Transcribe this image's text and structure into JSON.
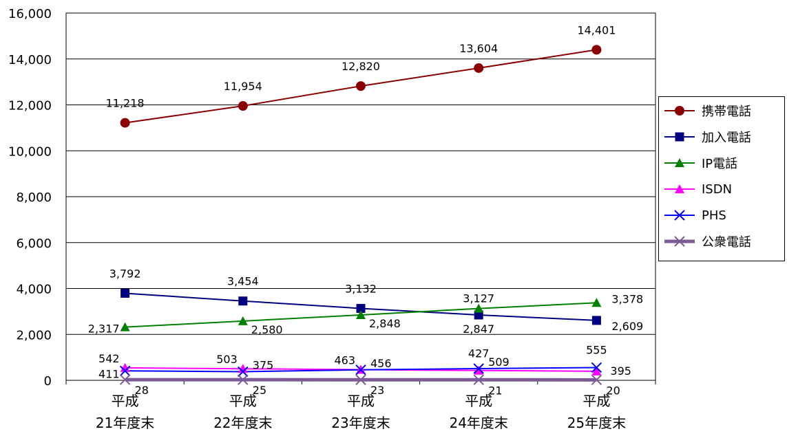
{
  "chart_data": {
    "type": "line",
    "categories": [
      [
        "平成",
        "21年度末"
      ],
      [
        "平成",
        "22年度末"
      ],
      [
        "平成",
        "23年度末"
      ],
      [
        "平成",
        "24年度末"
      ],
      [
        "平成",
        "25年度末"
      ]
    ],
    "ylim": [
      0,
      16000
    ],
    "yticks": [
      "0",
      "2,000",
      "4,000",
      "6,000",
      "8,000",
      "10,000",
      "12,000",
      "14,000",
      "16,000"
    ],
    "grid": true,
    "legend_position": "right",
    "series": [
      {
        "name": "携帯電話",
        "values": [
          11218,
          11954,
          12820,
          13604,
          14401
        ],
        "labels": [
          "11,218",
          "11,954",
          "12,820",
          "13,604",
          "14,401"
        ],
        "color": "#8B0000",
        "marker": "circle"
      },
      {
        "name": "加入電話",
        "values": [
          3792,
          3454,
          3132,
          2847,
          2609
        ],
        "labels": [
          "3,792",
          "3,454",
          "3,132",
          "2,847",
          "2,609"
        ],
        "color": "#000080",
        "marker": "square"
      },
      {
        "name": "IP電話",
        "values": [
          2317,
          2580,
          2848,
          3127,
          3378
        ],
        "labels": [
          "2,317",
          "2,580",
          "2,848",
          "3,127",
          "3,378"
        ],
        "color": "#008000",
        "marker": "triangle"
      },
      {
        "name": "ISDN",
        "values": [
          542,
          503,
          463,
          427,
          395
        ],
        "labels": [
          "542",
          "503",
          "463",
          "427",
          "395"
        ],
        "color": "#FF00FF",
        "marker": "triangle"
      },
      {
        "name": "PHS",
        "values": [
          411,
          375,
          456,
          509,
          555
        ],
        "labels": [
          "411",
          "375",
          "456",
          "509",
          "555"
        ],
        "color": "#0000FF",
        "marker": "x"
      },
      {
        "name": "公衆電話",
        "values": [
          28,
          25,
          23,
          21,
          20
        ],
        "labels": [
          "28",
          "25",
          "23",
          "21",
          "20"
        ],
        "color": "#7B5A96",
        "marker": "x"
      }
    ]
  }
}
